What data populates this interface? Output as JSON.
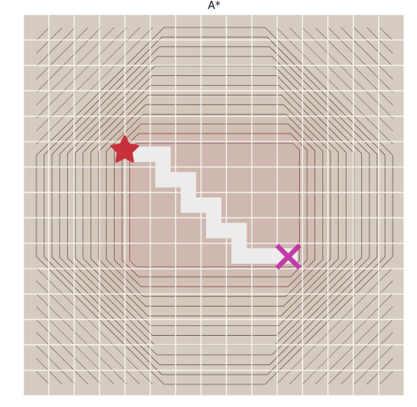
{
  "title": "A*",
  "colors": {
    "background_outer": "#d6cbc0",
    "background_inner": "#c9aca4",
    "grid_line": "#ffffff",
    "contour_line": "#4a3a2a",
    "path": "#ececec",
    "start_marker": "#c8313c",
    "goal_marker": "#c23aa8"
  },
  "grid": {
    "rows": 15,
    "cols": 15
  },
  "start": {
    "col": 4,
    "row": 5
  },
  "goal": {
    "col": 10,
    "row": 9
  },
  "start_marker": "star",
  "goal_marker": "cross",
  "path_cells": [
    [
      4,
      5
    ],
    [
      5,
      5
    ],
    [
      5,
      6
    ],
    [
      6,
      6
    ],
    [
      6,
      7
    ],
    [
      7,
      7
    ],
    [
      7,
      8
    ],
    [
      8,
      8
    ],
    [
      8,
      9
    ],
    [
      9,
      9
    ],
    [
      10,
      9
    ]
  ],
  "contour_levels": 13
}
